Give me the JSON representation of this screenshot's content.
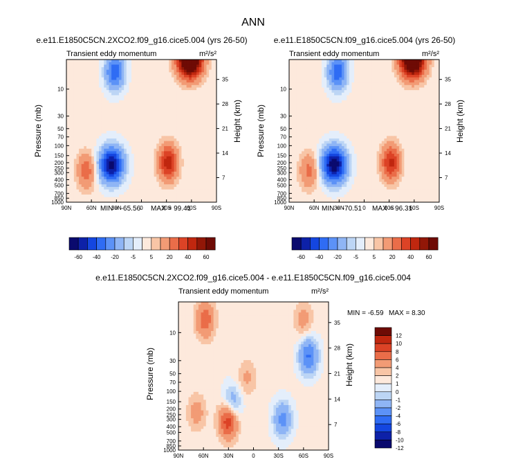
{
  "main_title": "ANN",
  "chart_data": [
    {
      "type": "heatmap",
      "panel_title": "e.e11.E1850C5CN.2XCO2.f09_g16.cice5.004 (yrs 26-50)",
      "subtitle": "Transient eddy momentum",
      "units": "m²/s²",
      "xlabel": "",
      "ylabel": "Pressure (mb)",
      "ylabel_right": "Height (km)",
      "x_ticks": [
        "90N",
        "60N",
        "30N",
        "0",
        "30S",
        "60S",
        "90S"
      ],
      "y_ticks": [
        "10",
        "30",
        "50",
        "70",
        "100",
        "150",
        "200",
        "250",
        "300",
        "400",
        "500",
        "700",
        "850",
        "1000"
      ],
      "y_ticks_right": [
        "35",
        "28",
        "21",
        "14",
        "7"
      ],
      "min_label": "MIN = -65.56",
      "max_label": "MAX =  99.41",
      "colorbar_labels": [
        "-60",
        "-40",
        "-20",
        "-5",
        "5",
        "20",
        "40",
        "60"
      ],
      "features": [
        {
          "lat": -58,
          "p": 3,
          "value": 99
        },
        {
          "lat": -32,
          "p": 200,
          "value": 45
        },
        {
          "lat": 36,
          "p": 220,
          "value": -65
        },
        {
          "lat": 32,
          "p": 5,
          "value": -40
        },
        {
          "lat": 66,
          "p": 280,
          "value": 25
        }
      ]
    },
    {
      "type": "heatmap",
      "panel_title": "e.e11.E1850C5CN.f09_g16.cice5.004 (yrs 26-50)",
      "subtitle": "Transient eddy momentum",
      "units": "m²/s²",
      "xlabel": "",
      "ylabel": "Pressure (mb)",
      "ylabel_right": "Height (km)",
      "x_ticks": [
        "90N",
        "60N",
        "30N",
        "0",
        "30S",
        "60S",
        "90S"
      ],
      "y_ticks": [
        "10",
        "30",
        "50",
        "70",
        "100",
        "150",
        "200",
        "250",
        "300",
        "400",
        "500",
        "700",
        "850",
        "1000"
      ],
      "y_ticks_right": [
        "35",
        "28",
        "21",
        "14",
        "7"
      ],
      "min_label": "MIN = -70.51",
      "max_label": "MAX =  96.31",
      "colorbar_labels": [
        "-60",
        "-40",
        "-20",
        "-5",
        "5",
        "20",
        "40",
        "60"
      ],
      "features": [
        {
          "lat": -58,
          "p": 3,
          "value": 96
        },
        {
          "lat": -32,
          "p": 200,
          "value": 42
        },
        {
          "lat": 36,
          "p": 220,
          "value": -70
        },
        {
          "lat": 32,
          "p": 5,
          "value": -40
        },
        {
          "lat": 66,
          "p": 280,
          "value": 22
        }
      ]
    },
    {
      "type": "heatmap",
      "panel_title": "e.e11.E1850C5CN.2XCO2.f09_g16.cice5.004 - e.e11.E1850C5CN.f09_g16.cice5.004",
      "subtitle": "Transient eddy momentum",
      "units": "m²/s²",
      "xlabel": "",
      "ylabel": "Pressure (mb)",
      "ylabel_right": "Height (km)",
      "x_ticks": [
        "90N",
        "60N",
        "30N",
        "0",
        "30S",
        "60S",
        "90S"
      ],
      "y_ticks": [
        "10",
        "30",
        "50",
        "70",
        "100",
        "150",
        "200",
        "250",
        "300",
        "400",
        "500",
        "700",
        "850",
        "1000"
      ],
      "y_ticks_right": [
        "35",
        "28",
        "21",
        "14",
        "7"
      ],
      "min_label": "MIN = -6.59",
      "max_label": "MAX =  8.30",
      "colorbar_labels": [
        "12",
        "10",
        "8",
        "6",
        "4",
        "2",
        "1",
        "0",
        "-1",
        "-2",
        "-4",
        "-6",
        "-8",
        "-10",
        "-12"
      ],
      "features": [
        {
          "lat": -66,
          "p": 25,
          "value": -6.5
        },
        {
          "lat": -60,
          "p": 6,
          "value": 2.5
        },
        {
          "lat": -35,
          "p": 300,
          "value": -5
        },
        {
          "lat": 30,
          "p": 300,
          "value": 8.3
        },
        {
          "lat": 26,
          "p": 170,
          "value": -5
        },
        {
          "lat": 58,
          "p": 6,
          "value": 5
        },
        {
          "lat": 8,
          "p": 60,
          "value": 2
        },
        {
          "lat": 68,
          "p": 230,
          "value": 2.5
        }
      ]
    }
  ]
}
